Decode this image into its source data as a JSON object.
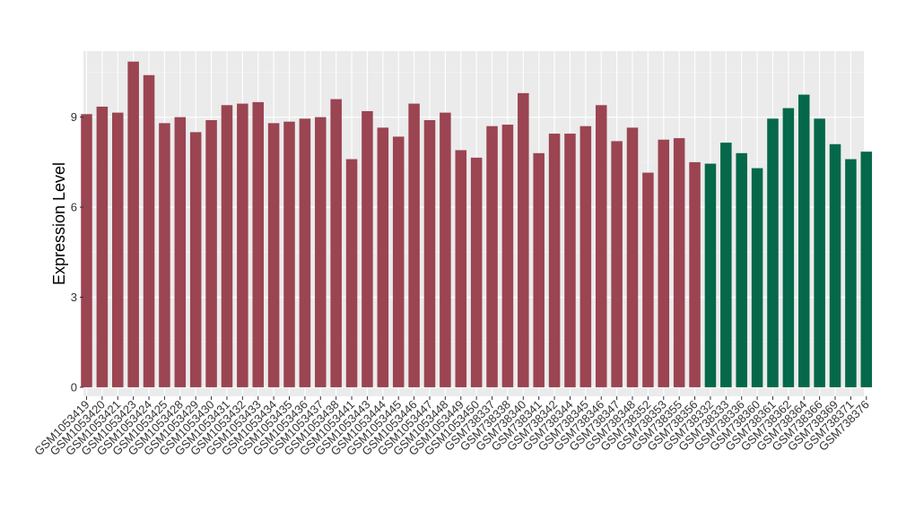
{
  "chart_data": {
    "type": "bar",
    "title": "",
    "xlabel": "",
    "ylabel": "Expression Level",
    "ylim": [
      -0.3,
      11.2
    ],
    "yticks": [
      0,
      3,
      6,
      9
    ],
    "grid": true,
    "legend": "none",
    "colors": {
      "group1": "#9b4452",
      "group2": "#05684a",
      "panel": "#ebebeb",
      "grid": "#ffffff"
    },
    "categories": [
      "GSM1053419",
      "GSM1053420",
      "GSM1053421",
      "GSM1053423",
      "GSM1053424",
      "GSM1053425",
      "GSM1053428",
      "GSM1053429",
      "GSM1053430",
      "GSM1053431",
      "GSM1053432",
      "GSM1053433",
      "GSM1053434",
      "GSM1053435",
      "GSM1053436",
      "GSM1053437",
      "GSM1053438",
      "GSM1053441",
      "GSM1053443",
      "GSM1053444",
      "GSM1053445",
      "GSM1053446",
      "GSM1053447",
      "GSM1053448",
      "GSM1053449",
      "GSM1053450",
      "GSM738337",
      "GSM738338",
      "GSM738340",
      "GSM738341",
      "GSM738342",
      "GSM738344",
      "GSM738345",
      "GSM738346",
      "GSM738347",
      "GSM738348",
      "GSM738352",
      "GSM738353",
      "GSM738355",
      "GSM738356",
      "GSM738332",
      "GSM738333",
      "GSM738336",
      "GSM738360",
      "GSM738361",
      "GSM738362",
      "GSM738364",
      "GSM738366",
      "GSM738369",
      "GSM738371",
      "GSM738376"
    ],
    "values": [
      9.1,
      9.35,
      9.15,
      10.85,
      10.4,
      8.8,
      9.0,
      8.5,
      8.9,
      9.4,
      9.45,
      9.5,
      8.8,
      8.85,
      8.95,
      9.0,
      9.6,
      7.6,
      9.2,
      8.65,
      8.35,
      9.45,
      8.9,
      9.15,
      7.9,
      7.65,
      8.7,
      8.75,
      9.8,
      7.8,
      8.45,
      8.45,
      8.7,
      9.4,
      8.2,
      8.65,
      7.15,
      8.25,
      8.3,
      7.5,
      7.45,
      8.15,
      7.8,
      7.3,
      8.95,
      9.3,
      9.75,
      8.95,
      8.1,
      7.6,
      7.85
    ],
    "group_split_index": 40
  }
}
